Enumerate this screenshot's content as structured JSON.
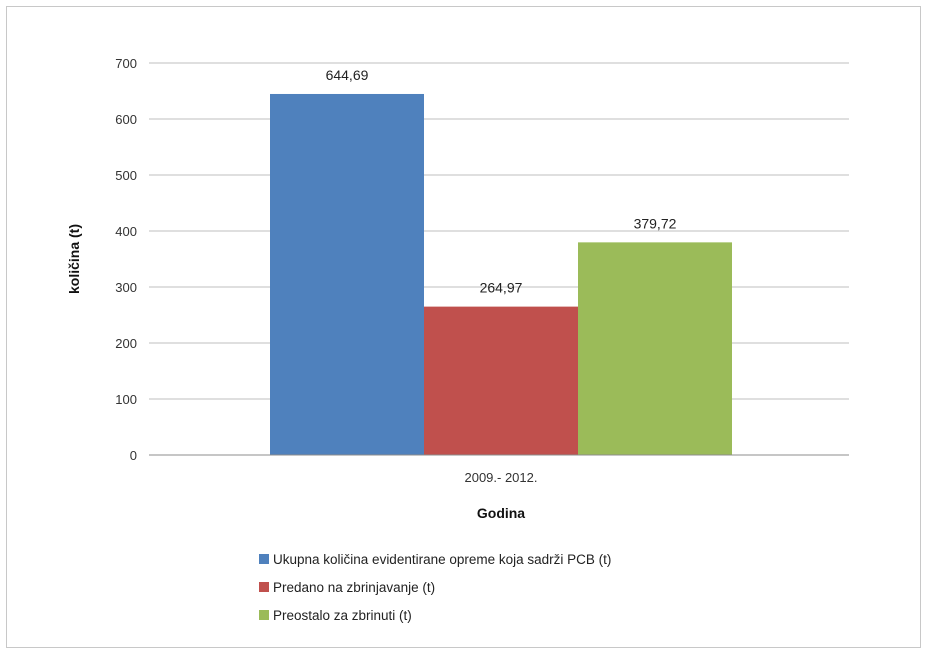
{
  "chart_data": {
    "type": "bar",
    "categories": [
      "2009.- 2012."
    ],
    "series": [
      {
        "name": "Ukupna količina evidentirane opreme koja sadrži PCB (t)",
        "values": [
          644.69
        ],
        "label": "644,69",
        "color": "#4f81bd"
      },
      {
        "name": "Predano na zbrinjavanje (t)",
        "values": [
          264.97
        ],
        "label": "264,97",
        "color": "#c0504d"
      },
      {
        "name": "Preostalo za zbrinuti (t)",
        "values": [
          379.72
        ],
        "label": "379,72",
        "color": "#9bbb59"
      }
    ],
    "xlabel": "Godina",
    "ylabel": "količina  (t)",
    "ylim": [
      0,
      700
    ],
    "yticks": [
      0,
      100,
      200,
      300,
      400,
      500,
      600,
      700
    ],
    "grid": true,
    "legend": "bottom"
  }
}
